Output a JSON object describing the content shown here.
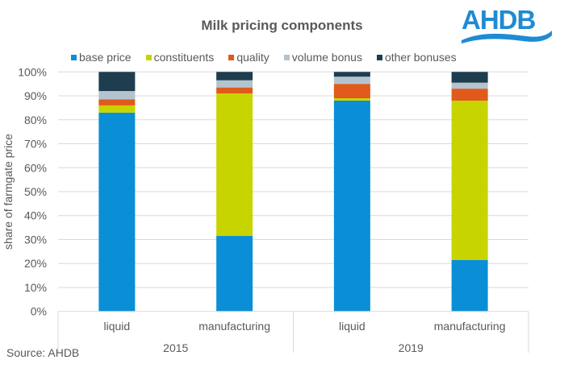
{
  "chart_data": {
    "type": "bar",
    "stacked": true,
    "percent": true,
    "title": "Milk pricing components",
    "xlabel": "",
    "ylabel": "share of farmgate price",
    "ylim": [
      0,
      100
    ],
    "y_ticks": [
      "0%",
      "10%",
      "20%",
      "30%",
      "40%",
      "50%",
      "60%",
      "70%",
      "80%",
      "90%",
      "100%"
    ],
    "grid": true,
    "legend_position": "top",
    "groups": [
      {
        "label": "2015",
        "categories": [
          "liquid",
          "manufacturing"
        ]
      },
      {
        "label": "2019",
        "categories": [
          "liquid",
          "manufacturing"
        ]
      }
    ],
    "categories": [
      "2015 liquid",
      "2015 manufacturing",
      "2019 liquid",
      "2019 manufacturing"
    ],
    "category_labels": [
      "liquid",
      "manufacturing",
      "liquid",
      "manufacturing"
    ],
    "series": [
      {
        "name": "base price",
        "color": "#0a8fd6",
        "values": [
          83,
          31.5,
          88,
          21.5
        ]
      },
      {
        "name": "constituents",
        "color": "#c8d400",
        "values": [
          3,
          59.5,
          1,
          66.5
        ]
      },
      {
        "name": "quality",
        "color": "#e05a1c",
        "values": [
          2.5,
          2.5,
          6,
          5
        ]
      },
      {
        "name": "volume bonus",
        "color": "#b3c4cf",
        "values": [
          3.5,
          3,
          3,
          2.5
        ]
      },
      {
        "name": "other bonuses",
        "color": "#1e3d4f",
        "values": [
          8,
          3.5,
          2,
          4.5
        ]
      }
    ]
  },
  "logo": {
    "text": "AHDB",
    "color": "#1f8bd2"
  },
  "source": "Source: AHDB"
}
